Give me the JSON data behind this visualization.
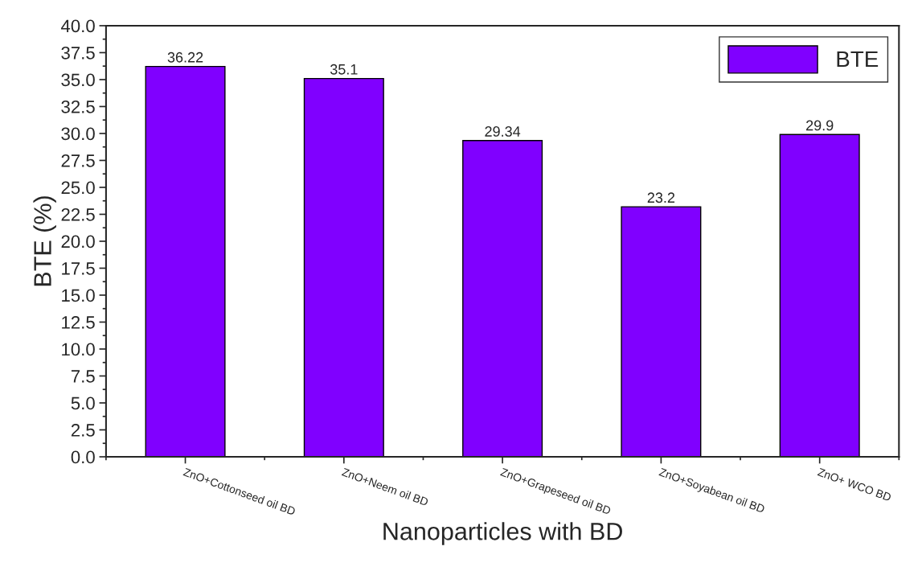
{
  "chart_data": {
    "type": "bar",
    "xlabel": "Nanoparticles with BD",
    "ylabel": "BTE (%)",
    "categories": [
      "ZnO+Cottonseed oil BD",
      "ZnO+Neem oil BD",
      "ZnO+Grapeseed oil BD",
      "ZnO+Soyabean oil BD",
      "ZnO+ WCO BD"
    ],
    "series": [
      {
        "name": "BTE",
        "color": "#8000ff",
        "values": [
          36.22,
          35.1,
          29.34,
          23.2,
          29.9
        ]
      }
    ],
    "ylim": [
      0,
      40
    ],
    "yticks": [
      {
        "value": 0,
        "label": "0.0"
      },
      2.5,
      {
        "value": 5,
        "label": "5.0"
      },
      7.5,
      {
        "value": 10,
        "label": "10.0"
      },
      12.5,
      {
        "value": 15,
        "label": "15.0"
      },
      17.5,
      {
        "value": 20,
        "label": "20.0"
      },
      22.5,
      {
        "value": 25,
        "label": "25.0"
      },
      27.5,
      {
        "value": 30,
        "label": "30.0"
      },
      32.5,
      {
        "value": 35,
        "label": "35.0"
      },
      37.5,
      {
        "value": 40,
        "label": "40.0"
      }
    ],
    "data_labels": true,
    "legend": "top right",
    "grid": false
  }
}
